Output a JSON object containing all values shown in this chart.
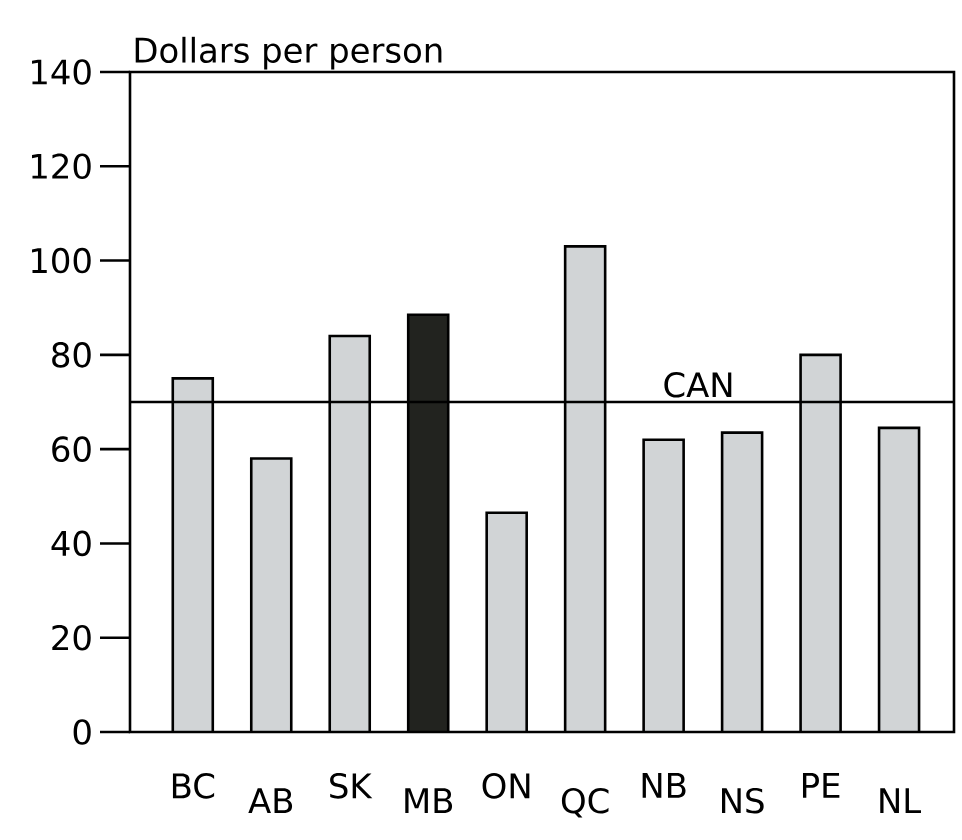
{
  "chart_data": {
    "type": "bar",
    "ylabel": "Dollars per person",
    "categories": [
      "BC",
      "AB",
      "SK",
      "MB",
      "ON",
      "QC",
      "NB",
      "NS",
      "PE",
      "NL"
    ],
    "values": [
      75,
      58,
      84,
      88.5,
      46.5,
      103,
      62,
      63.5,
      80,
      64.5
    ],
    "colors": [
      "#d1d4d6",
      "#d1d4d6",
      "#d1d4d6",
      "#22231f",
      "#d1d4d6",
      "#d1d4d6",
      "#d1d4d6",
      "#d1d4d6",
      "#d1d4d6",
      "#d1d4d6"
    ],
    "ylim": [
      0,
      140
    ],
    "yticks": [
      0,
      20,
      40,
      60,
      80,
      100,
      120,
      140
    ],
    "ref_lines": [
      {
        "axis": "y",
        "value": 70,
        "label": "CAN"
      }
    ]
  }
}
